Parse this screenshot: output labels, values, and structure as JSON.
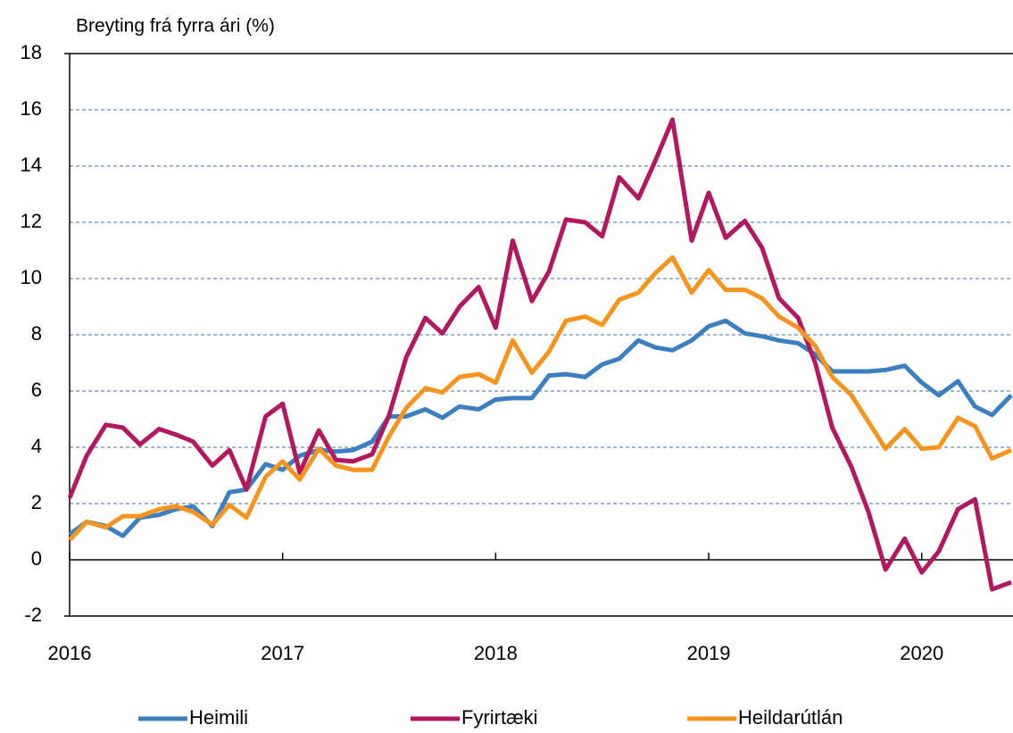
{
  "chart_data": {
    "type": "line",
    "y_label": "Breyting frá fyrra ári (%)",
    "x": [
      2016,
      2016.08,
      2016.17,
      2016.25,
      2016.33,
      2016.42,
      2016.5,
      2016.58,
      2016.67,
      2016.75,
      2016.83,
      2016.92,
      2017,
      2017.08,
      2017.17,
      2017.25,
      2017.33,
      2017.42,
      2017.5,
      2017.58,
      2017.67,
      2017.75,
      2017.83,
      2017.92,
      2018,
      2018.08,
      2018.17,
      2018.25,
      2018.33,
      2018.42,
      2018.5,
      2018.58,
      2018.67,
      2018.75,
      2018.83,
      2018.92,
      2019,
      2019.08,
      2019.17,
      2019.25,
      2019.33,
      2019.42,
      2019.5,
      2019.58,
      2019.67,
      2019.75,
      2019.83,
      2019.92,
      2020,
      2020.08,
      2020.17,
      2020.25,
      2020.33,
      2020.42
    ],
    "series": [
      {
        "name": "Heimili",
        "color": "#3a7fc1",
        "values": [
          0.9,
          1.35,
          1.2,
          0.85,
          1.5,
          1.6,
          1.8,
          1.9,
          1.2,
          2.4,
          2.5,
          3.4,
          3.2,
          3.7,
          3.9,
          3.85,
          3.9,
          4.2,
          5.1,
          5.1,
          5.35,
          5.05,
          5.45,
          5.35,
          5.7,
          5.75,
          5.75,
          6.55,
          6.6,
          6.5,
          6.95,
          7.15,
          7.8,
          7.55,
          7.45,
          7.8,
          8.3,
          8.5,
          8.05,
          7.95,
          7.8,
          7.7,
          7.3,
          6.7,
          6.7,
          6.7,
          6.75,
          6.9,
          6.3,
          5.85,
          6.35,
          5.45,
          5.15,
          5.85
        ]
      },
      {
        "name": "Fyrirtæki",
        "color": "#b3175f",
        "values": [
          2.2,
          3.7,
          4.8,
          4.7,
          4.1,
          4.65,
          4.45,
          4.2,
          3.35,
          3.9,
          2.5,
          5.1,
          5.55,
          3.1,
          4.6,
          3.55,
          3.5,
          3.75,
          5.15,
          7.2,
          8.6,
          8.05,
          9.0,
          9.7,
          8.25,
          11.35,
          9.2,
          10.25,
          12.1,
          12.0,
          11.5,
          13.6,
          12.85,
          14.2,
          15.65,
          11.35,
          13.05,
          11.45,
          12.05,
          11.1,
          9.3,
          8.6,
          7.0,
          4.7,
          3.3,
          1.7,
          -0.35,
          0.75,
          -0.45,
          0.3,
          1.8,
          2.15,
          -1.05,
          -0.8
        ]
      },
      {
        "name": "Heildarútlán",
        "color": "#f7941d",
        "values": [
          0.7,
          1.35,
          1.15,
          1.55,
          1.55,
          1.8,
          1.9,
          1.7,
          1.25,
          1.95,
          1.5,
          2.95,
          3.5,
          2.85,
          3.95,
          3.35,
          3.2,
          3.2,
          4.4,
          5.4,
          6.1,
          5.95,
          6.5,
          6.6,
          6.3,
          7.8,
          6.65,
          7.4,
          8.5,
          8.65,
          8.35,
          9.25,
          9.5,
          10.2,
          10.75,
          9.5,
          10.3,
          9.6,
          9.6,
          9.3,
          8.65,
          8.25,
          7.6,
          6.5,
          5.85,
          4.9,
          3.95,
          4.65,
          3.95,
          4.0,
          5.05,
          4.75,
          3.6,
          3.9
        ]
      }
    ],
    "xlim": [
      2016,
      2020.42
    ],
    "xticks": [
      2016,
      2017,
      2018,
      2019,
      2020
    ],
    "ylim": [
      -2,
      18
    ],
    "yticks": [
      -2,
      0,
      2,
      4,
      6,
      8,
      10,
      12,
      14,
      16,
      18
    ],
    "grid": true
  }
}
